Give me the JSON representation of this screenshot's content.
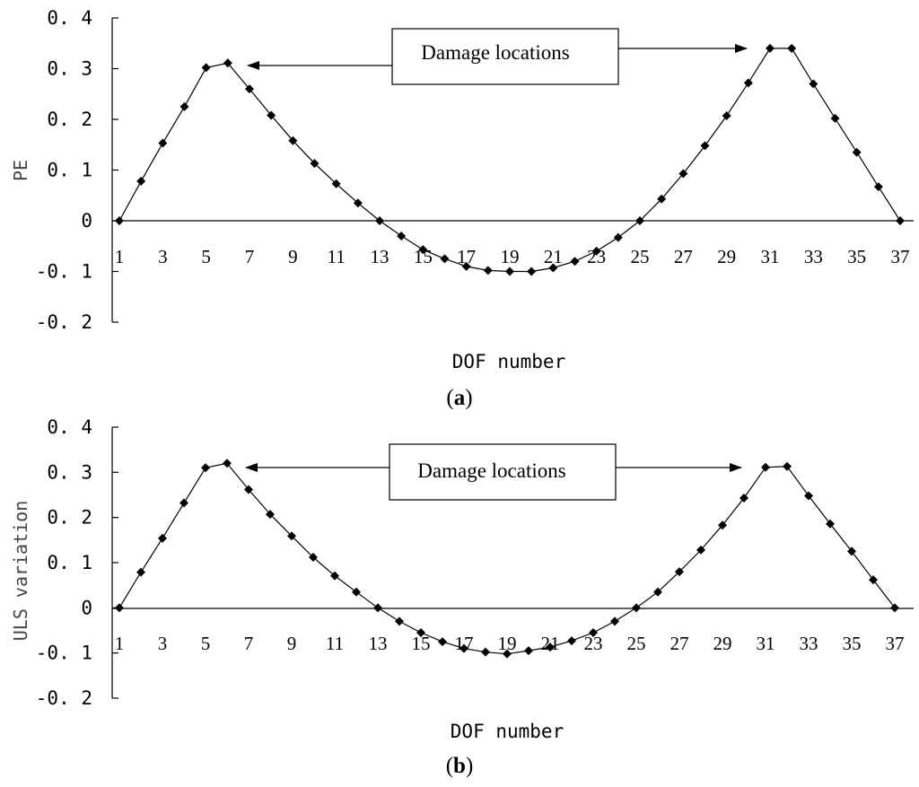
{
  "chart_data": [
    {
      "type": "line",
      "caption": "(a)",
      "caption_bold": "a",
      "xlabel": "DOF number",
      "ylabel": "PE",
      "ylim": [
        -0.2,
        0.4
      ],
      "y_ticks": [
        "0. 4",
        "0. 3",
        "0. 2",
        "0. 1",
        "0",
        "-0. 1",
        "-0. 2"
      ],
      "y_tick_values": [
        0.4,
        0.3,
        0.2,
        0.1,
        0,
        -0.1,
        -0.2
      ],
      "x_tick_labels": [
        "1",
        "3",
        "5",
        "7",
        "9",
        "11",
        "13",
        "15",
        "17",
        "19",
        "21",
        "23",
        "25",
        "27",
        "29",
        "31",
        "33",
        "35",
        "37"
      ],
      "annotation": "Damage locations",
      "marker": "diamond",
      "color": "#000000",
      "x": [
        1,
        2,
        3,
        4,
        5,
        6,
        7,
        8,
        9,
        10,
        11,
        12,
        13,
        14,
        15,
        16,
        17,
        18,
        19,
        20,
        21,
        22,
        23,
        24,
        25,
        26,
        27,
        28,
        29,
        30,
        31,
        32,
        33,
        34,
        35,
        36,
        37
      ],
      "values": [
        0,
        0.078,
        0.153,
        0.225,
        0.302,
        0.311,
        0.26,
        0.208,
        0.158,
        0.113,
        0.073,
        0.035,
        0,
        -0.03,
        -0.057,
        -0.075,
        -0.09,
        -0.098,
        -0.1,
        -0.1,
        -0.093,
        -0.08,
        -0.06,
        -0.033,
        0,
        0.043,
        0.093,
        0.148,
        0.207,
        0.272,
        0.34,
        0.34,
        0.27,
        0.202,
        0.135,
        0.067,
        0
      ]
    },
    {
      "type": "line",
      "caption": "(b)",
      "caption_bold": "b",
      "xlabel": "DOF number",
      "ylabel": "ULS variation",
      "ylim": [
        -0.2,
        0.4
      ],
      "y_ticks": [
        "0. 4",
        "0. 3",
        "0. 2",
        "0. 1",
        "0",
        "-0. 1",
        "-0. 2"
      ],
      "y_tick_values": [
        0.4,
        0.3,
        0.2,
        0.1,
        0,
        -0.1,
        -0.2
      ],
      "x_tick_labels": [
        "1",
        "3",
        "5",
        "7",
        "9",
        "11",
        "13",
        "15",
        "17",
        "19",
        "21",
        "23",
        "25",
        "27",
        "29",
        "31",
        "33",
        "35",
        "37"
      ],
      "annotation": "Damage locations",
      "marker": "diamond",
      "color": "#000000",
      "x": [
        1,
        2,
        3,
        4,
        5,
        6,
        7,
        8,
        9,
        10,
        11,
        12,
        13,
        14,
        15,
        16,
        17,
        18,
        19,
        20,
        21,
        22,
        23,
        24,
        25,
        26,
        27,
        28,
        29,
        30,
        31,
        32,
        33,
        34,
        35,
        36,
        37
      ],
      "values": [
        0,
        0.079,
        0.154,
        0.232,
        0.31,
        0.32,
        0.262,
        0.207,
        0.159,
        0.112,
        0.071,
        0.035,
        0,
        -0.03,
        -0.055,
        -0.075,
        -0.09,
        -0.098,
        -0.102,
        -0.095,
        -0.087,
        -0.073,
        -0.055,
        -0.03,
        0,
        0.035,
        0.08,
        0.128,
        0.183,
        0.243,
        0.311,
        0.313,
        0.248,
        0.186,
        0.125,
        0.062,
        0
      ]
    }
  ]
}
